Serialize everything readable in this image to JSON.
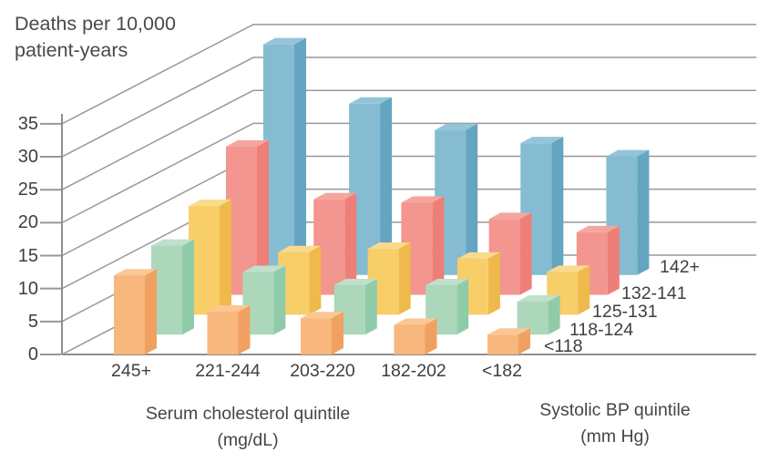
{
  "header": {
    "title_line1": "Deaths per 10,000",
    "title_line2": "patient-years"
  },
  "chart_data": {
    "type": "bar",
    "projection": "3d-oblique",
    "title": "Deaths per 10,000 patient-years",
    "categories": [
      "245+",
      "221-244",
      "203-220",
      "182-202",
      "<182"
    ],
    "category_axis": {
      "title": "Serum cholesterol quintile",
      "unit": "(mg/dL)"
    },
    "depth_axis": {
      "title": "Systolic BP quintile",
      "unit": "(mm Hg)"
    },
    "ylim": [
      0,
      35
    ],
    "ytick_step": 5,
    "ytick_labels": [
      "35",
      "30",
      "25",
      "20",
      "15",
      "10",
      "5",
      "0"
    ],
    "grid": true,
    "legend_position": "depth-row-labels-right",
    "series": [
      {
        "name": "<118",
        "values": [
          12,
          6.5,
          5.5,
          4.5,
          3
        ],
        "color": {
          "front": "#F8B77C",
          "side": "#F0A161",
          "top": "#FBC795"
        }
      },
      {
        "name": "118-124",
        "values": [
          13.5,
          9.5,
          7.5,
          7.5,
          5
        ],
        "color": {
          "front": "#ACD7BB",
          "side": "#90CBA9",
          "top": "#BFE0CC"
        }
      },
      {
        "name": "125-131",
        "values": [
          16.5,
          9.5,
          10,
          8.5,
          6.5
        ],
        "color": {
          "front": "#F8CE68",
          "side": "#EFB94B",
          "top": "#FADA8D"
        }
      },
      {
        "name": "132-141",
        "values": [
          22.5,
          14.5,
          14,
          11.5,
          9.5
        ],
        "color": {
          "front": "#F2968F",
          "side": "#EE7F78",
          "top": "#F4A59E"
        }
      },
      {
        "name": "142+",
        "values": [
          35,
          26,
          22,
          20,
          18
        ],
        "color": {
          "front": "#86BCD2",
          "side": "#64A5C1",
          "top": "#93C5D9"
        }
      }
    ],
    "colors": {
      "grid": "#989898",
      "axis": "#8F8F8F",
      "text": "#3F3F3F"
    }
  }
}
